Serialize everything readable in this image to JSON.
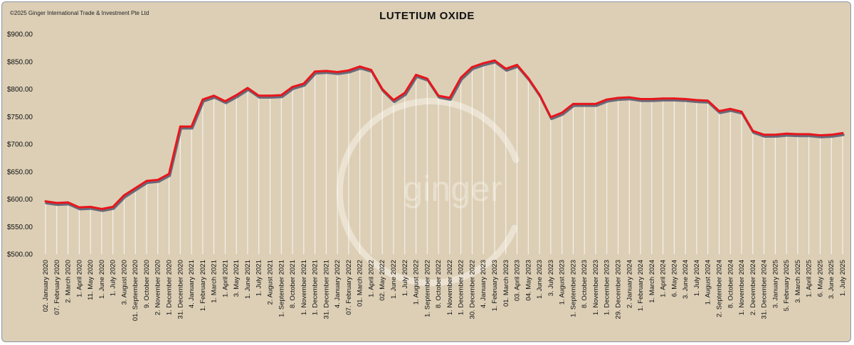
{
  "copyright": "©2025 Ginger International Trade & Investment Pte Ltd",
  "watermark": "ginger",
  "colors": {
    "line": "#e8161b",
    "shadow": "#4a4f6a",
    "drop": "#ffffff",
    "background": "#dccfb6"
  },
  "chart_data": {
    "type": "line",
    "title": "LUTETIUM OXIDE",
    "xlabel": "",
    "ylabel": "",
    "ylim": [
      500,
      900
    ],
    "yticks": [
      500,
      550,
      600,
      650,
      700,
      750,
      800,
      850,
      900
    ],
    "ytick_labels": [
      "$500.00",
      "$550.00",
      "$600.00",
      "$650.00",
      "$700.00",
      "$750.00",
      "$800.00",
      "$850.00",
      "$900.00"
    ],
    "grid": false,
    "legend": "none",
    "x_labels": [
      "02. January 2020",
      "07. February 2020",
      "2. March 2020",
      "1. April 2020",
      "11. May 2020",
      "1. June 2020",
      "1. July 2020",
      "3. August 2020",
      "01. September 2020",
      "9. October 2020",
      "2. November 2020",
      "1. December 2020",
      "31. December 2020",
      "4. January 2021",
      "1. February 2021",
      "1. March 2021",
      "1. April 2021",
      "3. May 2021",
      "1. June 2021",
      "1. July 2021",
      "2. August 2021",
      "1. September 2021",
      "8. October 2021",
      "1. November 2021",
      "1. December 2021",
      "31. December 2021",
      "4. January 2022",
      "07. February 2022",
      "01. March 2022",
      "1. April 2022",
      "02. May 2022",
      "1. June 2022",
      "1. July 2022",
      "1. August 2022",
      "1. September 2022",
      "8. October 2022",
      "1. November 2022",
      "1. December 2022",
      "30. December 2022",
      "4. January 2023",
      "1. February 2023",
      "01. March 2023",
      "03. April 2023",
      "04. May 2023",
      "1. June 2023",
      "3. July 2023",
      "1. August 2023",
      "1. September 2023",
      "8. October 2023",
      "1. November 2023",
      "1. December 2023",
      "29. December 2023",
      "2. January 2024",
      "1. February 2024",
      "1. March 2024",
      "1. April 2024",
      "6. May 2024",
      "3. June 2024",
      "1. July 2024",
      "1. August 2024",
      "2. September 2024",
      "8. October 2024",
      "1. November 2024",
      "2. December 2024",
      "31. December 2024",
      "3. January 2025",
      "5. February 2025",
      "3. March 2025",
      "1. April 2025",
      "6. May 2025",
      "3. June 2025",
      "1. July 2025"
    ],
    "series": [
      {
        "values": [
          596,
          593,
          594,
          585,
          586,
          582,
          586,
          607,
          620,
          633,
          635,
          646,
          732,
          732,
          781,
          788,
          778,
          789,
          802,
          788,
          788,
          789,
          804,
          810,
          832,
          833,
          831,
          834,
          841,
          835,
          800,
          780,
          793,
          826,
          819,
          788,
          784,
          821,
          840,
          847,
          852,
          837,
          844,
          820,
          790,
          749,
          757,
          773,
          773,
          773,
          781,
          784,
          785,
          782,
          782,
          783,
          783,
          782,
          780,
          779,
          760,
          764,
          759,
          724,
          717,
          717,
          719,
          718,
          718,
          716,
          717,
          720
        ]
      }
    ]
  }
}
